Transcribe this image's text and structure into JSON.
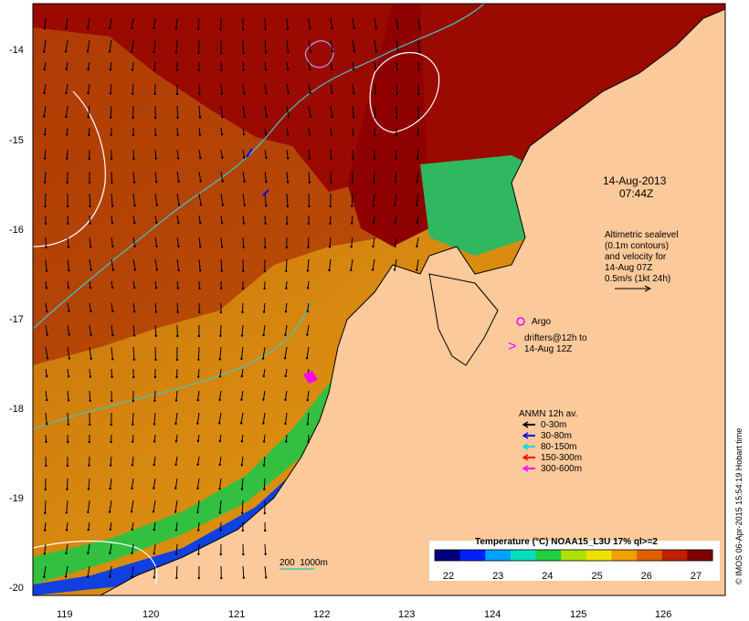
{
  "map": {
    "timestamp_line1": "14-Aug-2013",
    "timestamp_line2": "07:44Z",
    "altimetry_lines": [
      "Altimetric sealevel",
      "(0.1m contours)",
      "and velocity for",
      "14-Aug 07Z",
      "0.5m/s (1kt 24h)"
    ],
    "argo_label": "Argo",
    "drifter_lines": [
      "drifters@12h to",
      "14-Aug 12Z"
    ],
    "anmn_title": "ANMN 12h av.",
    "anmn_items": [
      {
        "label": "0-30m",
        "color": "#000000"
      },
      {
        "label": "30-80m",
        "color": "#0000ff"
      },
      {
        "label": "80-150m",
        "color": "#00d8d8"
      },
      {
        "label": "150-300m",
        "color": "#ff0000"
      },
      {
        "label": "300-600m",
        "color": "#ff00ff"
      }
    ],
    "scale_label": "200  1000m",
    "colorbar": {
      "title": "Temperature (°C) NOAA15_L3U 17% ql>=2",
      "ticks": [
        "22",
        "23",
        "24",
        "25",
        "26",
        "27"
      ],
      "colors": [
        "#000080",
        "#0020ff",
        "#00a0ff",
        "#00e0c0",
        "#20d040",
        "#b0e000",
        "#f0e000",
        "#f0a000",
        "#e06000",
        "#c02000",
        "#800000"
      ]
    },
    "lat_labels": [
      "-14",
      "-15",
      "-16",
      "-17",
      "-18",
      "-19",
      "-20"
    ],
    "lon_labels": [
      "119",
      "120",
      "121",
      "122",
      "123",
      "124",
      "125",
      "126"
    ],
    "credit": "© IMOS 06-Apr-2015 15:54:19 Hobart time",
    "colors": {
      "land": "#fbc99a",
      "warm": "#9a0a00",
      "frame": "#000000"
    }
  }
}
